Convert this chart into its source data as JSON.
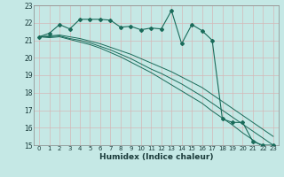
{
  "title": "",
  "xlabel": "Humidex (Indice chaleur)",
  "xlim": [
    -0.5,
    23.5
  ],
  "ylim": [
    15,
    23
  ],
  "xticks": [
    0,
    1,
    2,
    3,
    4,
    5,
    6,
    7,
    8,
    9,
    10,
    11,
    12,
    13,
    14,
    15,
    16,
    17,
    18,
    19,
    20,
    21,
    22,
    23
  ],
  "yticks": [
    15,
    16,
    17,
    18,
    19,
    20,
    21,
    22,
    23
  ],
  "bg_color": "#c5e8e5",
  "grid_color": "#aacfcc",
  "line_color": "#1a6b5a",
  "main_line_x": [
    0,
    1,
    2,
    3,
    4,
    5,
    6,
    7,
    8,
    9,
    10,
    11,
    12,
    13,
    14,
    15,
    16,
    17,
    18,
    19,
    20,
    21,
    22,
    23
  ],
  "main_line_y": [
    21.2,
    21.4,
    21.9,
    21.65,
    22.2,
    22.2,
    22.2,
    22.15,
    21.75,
    21.8,
    21.6,
    21.7,
    21.65,
    22.7,
    20.8,
    21.9,
    21.55,
    21.0,
    16.5,
    16.3,
    16.3,
    15.2,
    15.0,
    15.0
  ],
  "env_line1_y": [
    21.2,
    21.25,
    21.3,
    21.2,
    21.1,
    20.95,
    20.8,
    20.6,
    20.4,
    20.2,
    19.95,
    19.7,
    19.45,
    19.2,
    18.9,
    18.6,
    18.3,
    17.9,
    17.5,
    17.1,
    16.7,
    16.3,
    15.9,
    15.5
  ],
  "env_line2_y": [
    21.2,
    21.2,
    21.25,
    21.1,
    21.0,
    20.85,
    20.65,
    20.45,
    20.2,
    19.95,
    19.65,
    19.35,
    19.1,
    18.8,
    18.5,
    18.15,
    17.8,
    17.4,
    17.0,
    16.6,
    16.2,
    15.8,
    15.4,
    15.0
  ],
  "env_line3_y": [
    21.2,
    21.15,
    21.2,
    21.05,
    20.9,
    20.75,
    20.55,
    20.3,
    20.05,
    19.75,
    19.45,
    19.15,
    18.8,
    18.45,
    18.1,
    17.75,
    17.4,
    16.95,
    16.55,
    16.15,
    15.7,
    15.3,
    14.9,
    14.5
  ]
}
